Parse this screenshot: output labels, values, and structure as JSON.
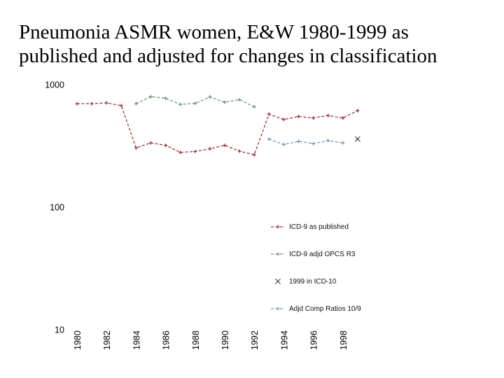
{
  "slide": {
    "title_line1": "Pneumonia ASMR women, E&W 1980-1999 as",
    "title_line2": "published and adjusted for changes in classification"
  },
  "chart_data": {
    "type": "line",
    "title": "",
    "xlabel": "",
    "ylabel": "",
    "y_scale": "log",
    "grid": false,
    "plot_border": false,
    "legend_position": "right-center",
    "x_axis": {
      "ticks": [
        1980,
        1982,
        1984,
        1986,
        1988,
        1990,
        1992,
        1994,
        1996,
        1998
      ],
      "range": [
        1979,
        2000
      ]
    },
    "y_axis": {
      "ticks": [
        1000,
        100,
        10
      ],
      "range": [
        10,
        1000
      ]
    },
    "series": [
      {
        "name": "ICD-9 as published",
        "color": "#993333",
        "marker": "plus",
        "line": true,
        "dashed": true,
        "x": [
          1980,
          1981,
          1982,
          1983,
          1984,
          1985,
          1986,
          1987,
          1988,
          1989,
          1990,
          1991,
          1992,
          1993,
          1994,
          1995,
          1996,
          1997,
          1998,
          1999
        ],
        "values": [
          700,
          700,
          710,
          675,
          305,
          335,
          320,
          280,
          285,
          300,
          320,
          287,
          268,
          575,
          520,
          550,
          535,
          560,
          535,
          615
        ]
      },
      {
        "name": "ICD-9 adjd OPCS R3",
        "color": "#669973",
        "marker": "plus",
        "line": true,
        "dashed": true,
        "x": [
          1984,
          1985,
          1986,
          1987,
          1988,
          1989,
          1990,
          1991,
          1992
        ],
        "values": [
          700,
          800,
          775,
          690,
          705,
          795,
          720,
          755,
          660
        ]
      },
      {
        "name": "1999 in ICD-10",
        "color": "#333333",
        "marker": "x",
        "line": false,
        "dashed": false,
        "x": [
          1999
        ],
        "values": [
          360
        ]
      },
      {
        "name": "Adjd Comp Ratios 10/9",
        "color": "#7096B8",
        "marker": "plus",
        "line": true,
        "dashed": true,
        "x": [
          1993,
          1994,
          1995,
          1996,
          1997,
          1998
        ],
        "values": [
          360,
          325,
          345,
          330,
          350,
          335
        ]
      }
    ]
  }
}
